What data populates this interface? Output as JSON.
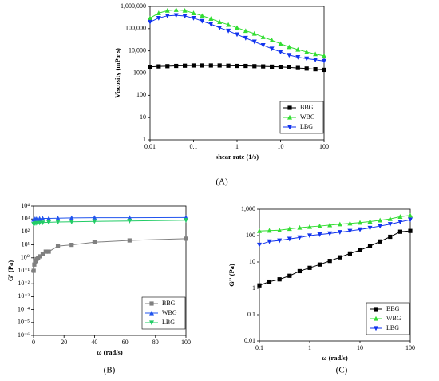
{
  "chart_data": [
    {
      "type": "line",
      "panel_label": "(A)",
      "x_label": "shear rate (1/s)",
      "y_label": "Viscosity (mPa·s)",
      "xscale": "log",
      "yscale": "log",
      "xlim": [
        0.01,
        100
      ],
      "ylim": [
        1,
        1000000
      ],
      "xticks": [
        0.01,
        0.1,
        1,
        10,
        100
      ],
      "yticks": [
        1,
        10,
        100,
        1000,
        {
          "value": 10000,
          "label": "10,000"
        },
        {
          "value": 100000,
          "label": "100,000"
        },
        {
          "value": 1000000,
          "label": "1,000,000"
        }
      ],
      "legend": "lower right",
      "grid": false,
      "x": [
        0.01,
        0.0158,
        0.0251,
        0.0398,
        0.0631,
        0.1,
        0.158,
        0.251,
        0.398,
        0.631,
        1,
        1.58,
        2.51,
        3.98,
        6.31,
        10,
        15.8,
        25.1,
        39.8,
        63.1,
        100
      ],
      "series": [
        {
          "name": "BBG",
          "color": "#000000",
          "marker": "square",
          "values": [
            1900,
            2000,
            2050,
            2100,
            2150,
            2200,
            2200,
            2200,
            2200,
            2150,
            2100,
            2100,
            2050,
            2000,
            1950,
            1900,
            1800,
            1700,
            1600,
            1500,
            1400
          ]
        },
        {
          "name": "WBG",
          "color": "#33dd33",
          "marker": "triangle-up",
          "values": [
            300000,
            500000,
            650000,
            700000,
            650000,
            500000,
            380000,
            280000,
            200000,
            150000,
            110000,
            80000,
            60000,
            42000,
            30000,
            21000,
            15000,
            11500,
            9000,
            7200,
            6000
          ]
        },
        {
          "name": "LBG",
          "color": "#1133ee",
          "marker": "triangle-down",
          "values": [
            200000,
            300000,
            380000,
            400000,
            370000,
            300000,
            220000,
            160000,
            110000,
            80000,
            55000,
            38000,
            26000,
            18000,
            12500,
            9000,
            6500,
            5200,
            4500,
            4000,
            3500
          ]
        }
      ]
    },
    {
      "type": "line",
      "panel_label": "(B)",
      "x_label": "ω (rad/s)",
      "y_label": "G' (Pa)",
      "xscale": "linear",
      "yscale": "log",
      "xlim": [
        0,
        100
      ],
      "ylim": [
        1e-06,
        10000
      ],
      "xticks": [
        0,
        20,
        40,
        60,
        80,
        100
      ],
      "yticks": [
        {
          "value": 1e-06,
          "label": "10⁻⁶"
        },
        {
          "value": 1e-05,
          "label": "10⁻⁵"
        },
        {
          "value": 0.0001,
          "label": "10⁻⁴"
        },
        {
          "value": 0.001,
          "label": "10⁻³"
        },
        {
          "value": 0.01,
          "label": "10⁻²"
        },
        {
          "value": 0.1,
          "label": "10⁻¹"
        },
        {
          "value": 1,
          "label": "10⁰"
        },
        {
          "value": 10,
          "label": "10¹"
        },
        {
          "value": 100,
          "label": "10²"
        },
        {
          "value": 1000,
          "label": "10³"
        },
        {
          "value": 10000,
          "label": "10⁴"
        }
      ],
      "legend": "lower right",
      "grid": false,
      "series": [
        {
          "name": "BBG",
          "color": "#808080",
          "marker": "square",
          "x": [
            0.1,
            0.5,
            1,
            1.5,
            2,
            3,
            4,
            6,
            8,
            10,
            16,
            25,
            40,
            63,
            100
          ],
          "values": [
            0.1,
            0.3,
            0.5,
            0.6,
            0.8,
            1,
            1.3,
            2,
            3,
            3,
            8,
            10,
            16,
            22,
            30
          ]
        },
        {
          "name": "WBG",
          "color": "#2255ee",
          "marker": "triangle-up",
          "x": [
            0.1,
            1,
            2,
            4,
            6,
            10,
            16,
            25,
            40,
            63,
            100
          ],
          "values": [
            900,
            1000,
            1000,
            1050,
            1100,
            1100,
            1150,
            1200,
            1250,
            1250,
            1300
          ]
        },
        {
          "name": "LBG",
          "color": "#22cc66",
          "marker": "triangle-down",
          "x": [
            0.1,
            1,
            2,
            4,
            6,
            10,
            16,
            25,
            40,
            63,
            100
          ],
          "values": [
            400,
            450,
            480,
            500,
            520,
            550,
            580,
            600,
            650,
            700,
            800
          ]
        }
      ]
    },
    {
      "type": "line",
      "panel_label": "(C)",
      "x_label": "ω (rad/s)",
      "y_label": "G'' (Pa)",
      "xscale": "log",
      "yscale": "log",
      "xlim": [
        0.1,
        100
      ],
      "ylim": [
        0.01,
        1000
      ],
      "xticks": [
        0.1,
        1,
        10,
        100
      ],
      "yticks": [
        0.01,
        0.1,
        1,
        10,
        100,
        {
          "value": 1000,
          "label": "1,000"
        }
      ],
      "legend": "lower right",
      "grid": false,
      "x": [
        0.1,
        0.158,
        0.251,
        0.398,
        0.631,
        1,
        1.58,
        2.51,
        3.98,
        6.31,
        10,
        15.8,
        25.1,
        39.8,
        63.1,
        100
      ],
      "series": [
        {
          "name": "BBG",
          "color": "#000000",
          "marker": "square",
          "values": [
            1.3,
            1.8,
            2.2,
            3,
            4.5,
            6,
            8,
            11,
            15,
            21,
            28,
            40,
            60,
            90,
            140,
            150
          ]
        },
        {
          "name": "WBG",
          "color": "#33dd33",
          "marker": "triangle-up",
          "values": [
            150,
            155,
            160,
            180,
            200,
            215,
            230,
            250,
            270,
            290,
            310,
            340,
            380,
            430,
            520,
            580
          ]
        },
        {
          "name": "LBG",
          "color": "#1133ee",
          "marker": "triangle-down",
          "values": [
            45,
            60,
            65,
            75,
            85,
            100,
            110,
            120,
            135,
            150,
            170,
            195,
            230,
            270,
            330,
            400
          ]
        }
      ]
    }
  ]
}
